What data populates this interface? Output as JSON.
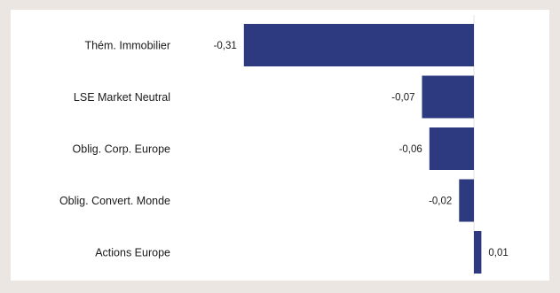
{
  "chart_data": {
    "type": "bar",
    "orientation": "horizontal",
    "categories": [
      "Thém. Immobilier",
      "LSE Market Neutral",
      "Oblig. Corp. Europe",
      "Oblig. Convert. Monde",
      "Actions Europe"
    ],
    "values": [
      -0.31,
      -0.07,
      -0.06,
      -0.02,
      0.01
    ],
    "value_labels": [
      "-0,31",
      "-0,07",
      "-0,06",
      "-0,02",
      "0,01"
    ],
    "xlim": [
      -0.31,
      0.02
    ],
    "title": "",
    "xlabel": "",
    "ylabel": "",
    "grid": false,
    "legend": "none",
    "bar_color": "#2d3a80",
    "axis_color": "#e3e3e3"
  }
}
